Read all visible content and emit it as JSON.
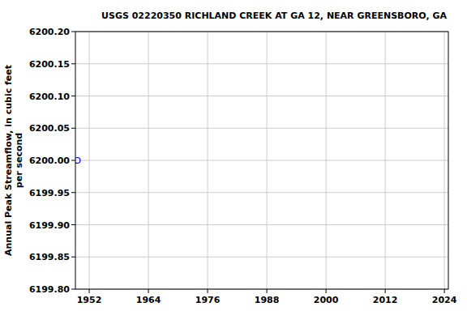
{
  "chart_data": {
    "type": "scatter",
    "title": "USGS 02220350 RICHLAND CREEK AT GA 12, NEAR GREENSBORO, GA",
    "y_label": [
      "Annual Peak Streamflow, in cubic feet",
      "per second"
    ],
    "x": [
      1949.6
    ],
    "values": [
      6200.0
    ],
    "color": "#0000ff",
    "marker": "open-circle",
    "xlim": [
      1949.2,
      2024.8
    ],
    "xticks": [
      1952,
      1964,
      1976,
      1988,
      2000,
      2012,
      2024
    ],
    "ylim": [
      6199.8,
      6200.2
    ],
    "yticks": [
      {
        "value": 6199.8,
        "label": "6199.80"
      },
      {
        "value": 6199.85,
        "label": "6199.85"
      },
      {
        "value": 6199.9,
        "label": "6199.90"
      },
      {
        "value": 6199.95,
        "label": "6199.95"
      },
      {
        "value": 6200.0,
        "label": "6200.00"
      },
      {
        "value": 6200.05,
        "label": "6200.05"
      },
      {
        "value": 6200.1,
        "label": "6200.10"
      },
      {
        "value": 6200.15,
        "label": "6200.15"
      },
      {
        "value": 6200.2,
        "label": "6200.20"
      }
    ],
    "grid": true
  }
}
